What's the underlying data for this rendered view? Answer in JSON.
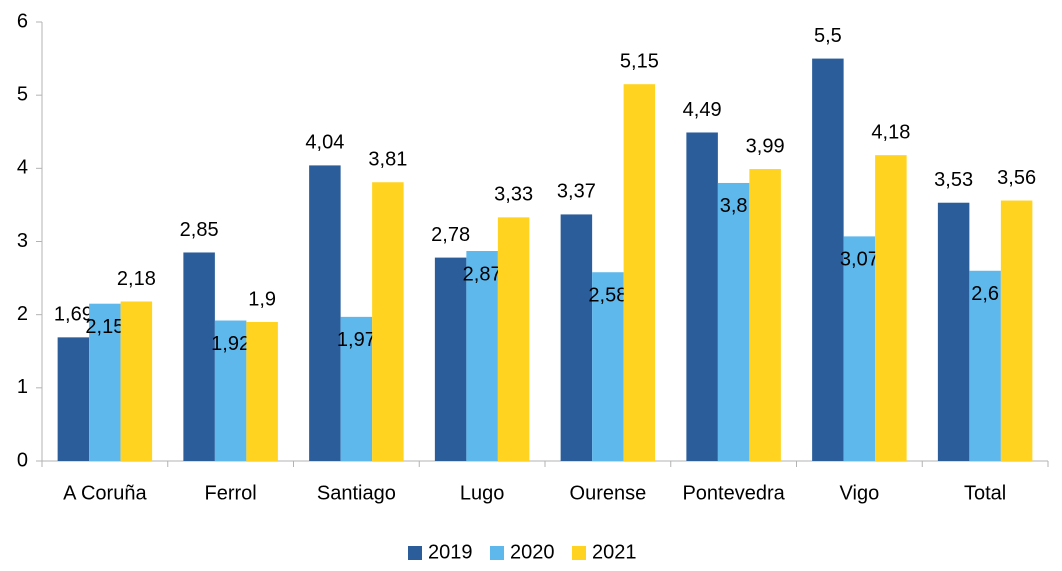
{
  "chart_data": {
    "type": "bar",
    "categories": [
      "A Coruña",
      "Ferrol",
      "Santiago",
      "Lugo",
      "Ourense",
      "Pontevedra",
      "Vigo",
      "Total"
    ],
    "series": [
      {
        "name": "2019",
        "color": "#2a5d9a",
        "values": [
          1.69,
          2.85,
          4.04,
          2.78,
          3.37,
          4.49,
          5.5,
          3.53
        ],
        "value_labels": [
          "1,69",
          "2,85",
          "4,04",
          "2,78",
          "3,37",
          "4,49",
          "5,5",
          "3,53"
        ]
      },
      {
        "name": "2020",
        "color": "#5fb8ec",
        "values": [
          2.15,
          1.92,
          1.97,
          2.87,
          2.58,
          3.8,
          3.07,
          2.6
        ],
        "value_labels": [
          "2,15",
          "1,92",
          "1,97",
          "2,87",
          "2,58",
          "3,8",
          "3,07",
          "2,6"
        ]
      },
      {
        "name": "2021",
        "color": "#ffd320",
        "values": [
          2.18,
          1.9,
          3.81,
          3.33,
          5.15,
          3.99,
          4.18,
          3.56
        ],
        "value_labels": [
          "2,18",
          "1,9",
          "3,81",
          "3,33",
          "5,15",
          "3,99",
          "4,18",
          "3,56"
        ]
      }
    ],
    "ylim": [
      0,
      6
    ],
    "yticks": [
      0,
      1,
      2,
      3,
      4,
      5,
      6
    ],
    "legend": "bottom"
  }
}
